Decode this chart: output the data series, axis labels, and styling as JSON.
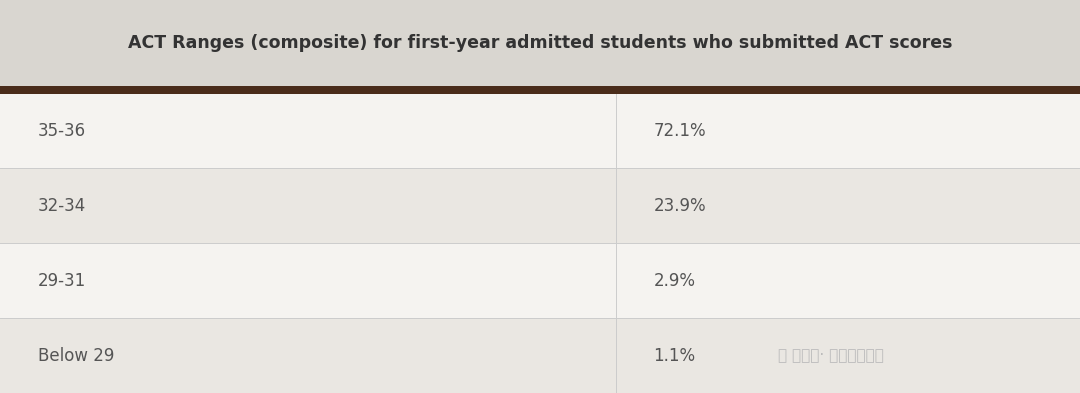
{
  "title": "ACT Ranges (composite) for first-year admitted students who submitted ACT scores",
  "title_bg": "#d9d6d0",
  "header_border_color": "#4a2c1a",
  "rows": [
    {
      "range": "35-36",
      "value": "72.1%"
    },
    {
      "range": "32-34",
      "value": "23.9%"
    },
    {
      "range": "29-31",
      "value": "2.9%"
    },
    {
      "range": "Below 29",
      "value": "1.1%"
    }
  ],
  "row_bg_odd": "#f5f3f0",
  "row_bg_even": "#eae7e2",
  "text_color": "#555555",
  "title_text_color": "#333333",
  "watermark": "公众号· 棒呀留学精选",
  "col_split": 0.57,
  "fig_bg": "#f5f3f0",
  "divider_color": "#cccccc",
  "border_line_color": "#4a2c1a"
}
